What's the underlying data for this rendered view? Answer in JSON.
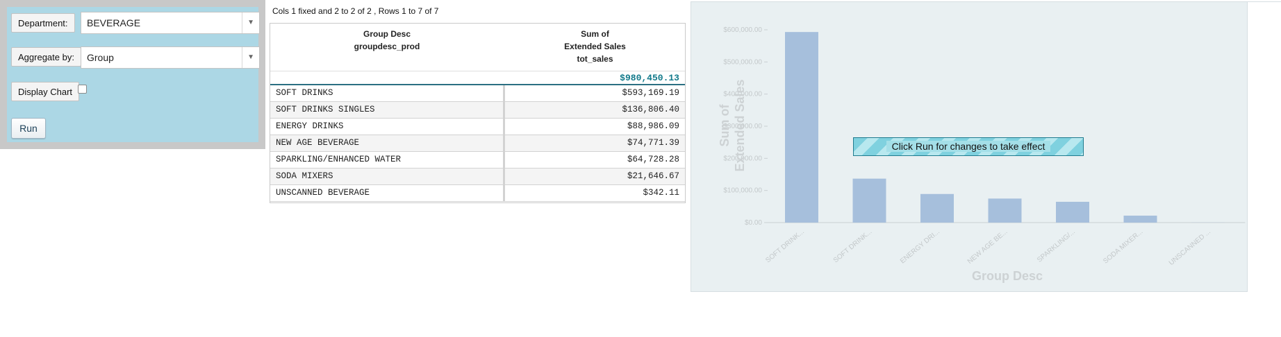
{
  "controls": {
    "department_label": "Department:",
    "department_value": "BEVERAGE",
    "aggregate_label": "Aggregate by:",
    "aggregate_value": "Group",
    "display_chart_label": "Display Chart",
    "display_chart_checked": false,
    "run_label": "Run"
  },
  "table": {
    "info": "Cols 1 fixed and 2 to 2 of 2 , Rows 1 to 7 of 7",
    "headers": [
      [
        "Group Desc",
        "groupdesc_prod"
      ],
      [
        "Sum of",
        "Extended Sales",
        "tot_sales"
      ]
    ],
    "grand_total": "$980,450.13",
    "rows": [
      [
        "SOFT DRINKS",
        "$593,169.19"
      ],
      [
        "SOFT DRINKS SINGLES",
        "$136,806.40"
      ],
      [
        "ENERGY DRINKS",
        "$88,986.09"
      ],
      [
        "NEW AGE BEVERAGE",
        "$74,771.39"
      ],
      [
        "SPARKLING/ENHANCED WATER",
        "$64,728.28"
      ],
      [
        "SODA MIXERS",
        "$21,646.67"
      ],
      [
        "UNSCANNED BEVERAGE",
        "$342.11"
      ]
    ]
  },
  "chart": {
    "overlay_text": "Click Run for changes to take effect",
    "colors": {
      "bar": "#a6bfdc",
      "axis": "#c9cfd2",
      "panel_bg": "#e9f0f2"
    }
  },
  "chart_data": {
    "type": "bar",
    "categories": [
      "SOFT DRINK...",
      "SOFT DRINK...",
      "ENERGY DRI...",
      "NEW AGE BE...",
      "SPARKLING/...",
      "SODA MIXER...",
      "UNSCANNED ..."
    ],
    "values": [
      593169.19,
      136806.4,
      88986.09,
      74771.39,
      64728.28,
      21646.67,
      342.11
    ],
    "ylim": [
      0,
      600000
    ],
    "yticks": [
      0,
      100000,
      200000,
      300000,
      400000,
      500000,
      600000
    ],
    "ytick_labels": [
      "$0.00",
      "$100,000.00",
      "$200,000.00",
      "$300,000.00",
      "$400,000.00",
      "$500,000.00",
      "$600,000.00"
    ],
    "ylabel_lines": [
      "Sum of",
      "Extended Sales"
    ],
    "xlabel": "Group Desc",
    "grid": false
  }
}
